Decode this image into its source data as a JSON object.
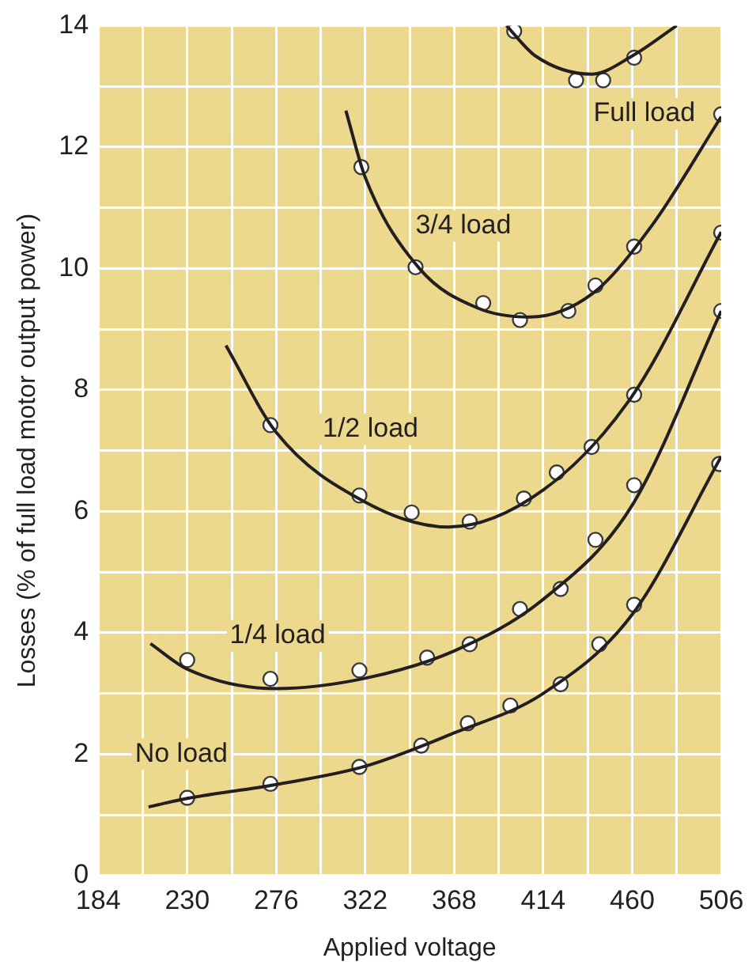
{
  "chart_data": {
    "type": "line",
    "xlabel": "Applied voltage",
    "ylabel": "Losses (% of full load motor output power)",
    "xlim": [
      184,
      506
    ],
    "ylim": [
      0,
      14
    ],
    "xticks": [
      184,
      {
        "value": 207,
        "label": null
      },
      230,
      {
        "value": 253,
        "label": null
      },
      276,
      {
        "value": 299,
        "label": null
      },
      322,
      {
        "value": 345,
        "label": null
      },
      368,
      {
        "value": 391,
        "label": null
      },
      414,
      {
        "value": 437,
        "label": null
      },
      460,
      {
        "value": 483,
        "label": null
      },
      506
    ],
    "yticks": [
      0,
      {
        "value": 1,
        "label": null
      },
      2,
      {
        "value": 3,
        "label": null
      },
      4,
      {
        "value": 5,
        "label": null
      },
      6,
      {
        "value": 7,
        "label": null
      },
      8,
      {
        "value": 9,
        "label": null
      },
      10,
      {
        "value": 11,
        "label": null
      },
      12,
      {
        "value": 13,
        "label": null
      },
      14
    ],
    "grid": true,
    "legend": false,
    "line_style": "solid",
    "series": [
      {
        "name": "No load",
        "marker": "none",
        "color": "#231f20",
        "x": [
          210,
          230,
          276,
          322,
          368,
          414,
          460,
          506
        ],
        "values": [
          1.13,
          1.27,
          1.5,
          1.8,
          2.35,
          3.0,
          4.3,
          6.9
        ]
      },
      {
        "name": "1/4 load",
        "marker": "none",
        "color": "#231f20",
        "x": [
          211,
          230,
          276,
          322,
          368,
          414,
          460,
          506
        ],
        "values": [
          3.82,
          3.4,
          3.08,
          3.25,
          3.7,
          4.55,
          6.1,
          9.3
        ]
      },
      {
        "name": "1/2 load",
        "marker": "none",
        "color": "#231f20",
        "x": [
          250,
          276,
          322,
          365,
          414,
          460,
          506
        ],
        "values": [
          8.73,
          7.3,
          6.15,
          5.74,
          6.35,
          7.9,
          10.6
        ]
      },
      {
        "name": "3/4 load",
        "marker": "none",
        "color": "#231f20",
        "x": [
          312,
          322,
          350,
          380,
          407,
          440,
          470,
          506
        ],
        "values": [
          12.6,
          11.5,
          10.0,
          9.35,
          9.2,
          9.6,
          10.7,
          12.5
        ]
      },
      {
        "name": "Full load",
        "marker": "none",
        "color": "#231f20",
        "x": [
          395,
          410,
          439,
          460,
          483
        ],
        "values": [
          14,
          13.5,
          13.2,
          13.5,
          14
        ]
      },
      {
        "type": "scatter",
        "marker": "circle",
        "color": "#ffffff",
        "x": [
          230,
          273,
          319,
          351,
          375,
          397,
          423,
          443,
          461,
          505
        ],
        "values": [
          1.28,
          1.51,
          1.79,
          2.14,
          2.51,
          2.8,
          3.15,
          3.81,
          4.46,
          6.78
        ]
      },
      {
        "type": "scatter",
        "marker": "circle",
        "color": "#ffffff",
        "x": [
          230,
          273,
          319,
          354,
          376,
          402,
          423,
          441,
          461,
          506
        ],
        "values": [
          3.55,
          3.24,
          3.38,
          3.59,
          3.81,
          4.39,
          4.72,
          5.53,
          6.43,
          9.3
        ]
      },
      {
        "type": "scatter",
        "marker": "circle",
        "color": "#ffffff",
        "x": [
          273,
          319,
          346,
          376,
          404,
          421,
          439,
          461,
          506
        ],
        "values": [
          7.42,
          6.26,
          5.98,
          5.83,
          6.21,
          6.64,
          7.06,
          7.92,
          10.59
        ]
      },
      {
        "type": "scatter",
        "marker": "circle",
        "color": "#ffffff",
        "x": [
          320,
          348,
          383,
          402,
          427,
          441,
          461,
          506
        ],
        "values": [
          11.67,
          10.02,
          9.43,
          9.15,
          9.3,
          9.72,
          10.36,
          12.54
        ]
      },
      {
        "type": "scatter",
        "marker": "circle",
        "color": "#ffffff",
        "x": [
          399,
          431,
          445,
          461
        ],
        "values": [
          13.91,
          13.1,
          13.1,
          13.47
        ]
      }
    ]
  }
}
